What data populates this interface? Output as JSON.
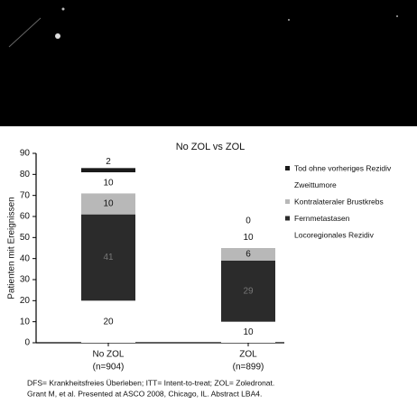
{
  "chart_data": {
    "type": "stacked_bar",
    "title": "No ZOL vs ZOL",
    "y_label": "Patienten mit Ereignissen",
    "categories": [
      "No ZOL",
      "ZOL"
    ],
    "category_notes": [
      "(n=904)",
      "(n=899)"
    ],
    "series": [
      {
        "name": "Locoregionales Rezidiv",
        "color": "#ffffff",
        "values": [
          20,
          10
        ]
      },
      {
        "name": "Fernmetastasen",
        "color": "#2b2b2b",
        "values": [
          41,
          29
        ]
      },
      {
        "name": "Kontralateraler Brustkrebs",
        "color": "#b8b8b8",
        "values": [
          10,
          6
        ]
      },
      {
        "name": "Zweittumore",
        "color": "#ffffff",
        "values": [
          10,
          10
        ]
      },
      {
        "name": "Tod ohne vorheriges Rezidiv",
        "color": "#1a1a1a",
        "values": [
          2,
          0
        ]
      }
    ],
    "ylim": [
      0,
      90
    ],
    "yticks": [
      0,
      10,
      20,
      30,
      40,
      50,
      60,
      70,
      80,
      90
    ],
    "footnotes": [
      "DFS= Krankheitsfreies Überleben; ITT= Intent-to-treat; ZOL= Zoledronat.",
      "Grant M, et al. Presented at ASCO 2008, Chicago, IL. Abstract LBA4."
    ]
  }
}
